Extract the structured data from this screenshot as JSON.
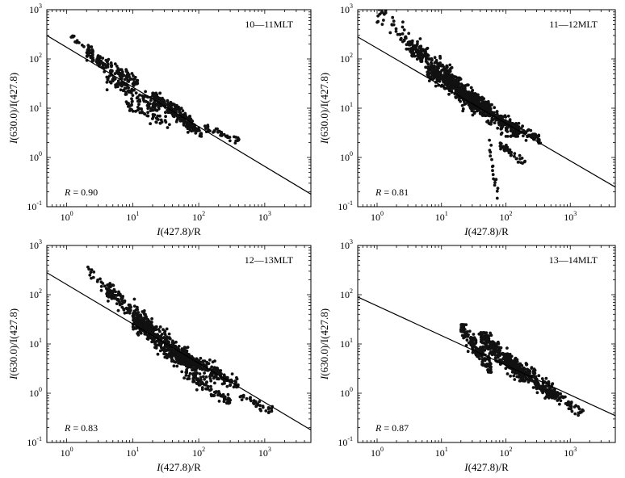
{
  "chart_data": [
    {
      "type": "scatter",
      "title": "10—11MLT",
      "xlabel_italic": "I",
      "xlabel_rest": "(427.8)/R",
      "ylabel_italic": "I",
      "ylabel_rest": "(630.0)/I(427.8)",
      "xscale": "log",
      "yscale": "log",
      "xlim": [
        0.5,
        5000
      ],
      "ylim": [
        0.1,
        1000
      ],
      "xticks": [
        1,
        10,
        100,
        1000
      ],
      "yticks": [
        0.1,
        1,
        10,
        100,
        1000
      ],
      "annotation": "R = 0.90",
      "fit_line": {
        "x": [
          0.5,
          5000
        ],
        "y": [
          300,
          0.18
        ]
      },
      "clusters": [
        {
          "x": [
            1.0,
            2.5
          ],
          "y": [
            150,
            320
          ],
          "n": 20
        },
        {
          "x": [
            2.0,
            12
          ],
          "y": [
            35,
            120
          ],
          "n": 120
        },
        {
          "x": [
            4,
            25
          ],
          "y": [
            10,
            45
          ],
          "n": 110
        },
        {
          "x": [
            8,
            40
          ],
          "y": [
            4,
            12
          ],
          "n": 50
        },
        {
          "x": [
            20,
            80
          ],
          "y": [
            5,
            18
          ],
          "n": 170
        },
        {
          "x": [
            35,
            110
          ],
          "y": [
            3,
            9
          ],
          "n": 80
        },
        {
          "x": [
            120,
            420
          ],
          "y": [
            2.2,
            4
          ],
          "n": 40
        }
      ]
    },
    {
      "type": "scatter",
      "title": "11—12MLT",
      "xlabel_italic": "I",
      "xlabel_rest": "(427.8)/R",
      "ylabel_italic": "I",
      "ylabel_rest": "(630.0)/I(427.8)",
      "xscale": "log",
      "yscale": "log",
      "xlim": [
        0.5,
        5000
      ],
      "ylim": [
        0.1,
        1000
      ],
      "xticks": [
        1,
        10,
        100,
        1000
      ],
      "yticks": [
        0.1,
        1,
        10,
        100,
        1000
      ],
      "annotation": "R = 0.81",
      "fit_line": {
        "x": [
          0.5,
          5000
        ],
        "y": [
          280,
          0.25
        ]
      },
      "clusters": [
        {
          "x": [
            1.0,
            6
          ],
          "y": [
            100,
            900
          ],
          "n": 70
        },
        {
          "x": [
            3,
            20
          ],
          "y": [
            30,
            200
          ],
          "n": 180
        },
        {
          "x": [
            6,
            60
          ],
          "y": [
            8,
            60
          ],
          "n": 380
        },
        {
          "x": [
            20,
            160
          ],
          "y": [
            3,
            20
          ],
          "n": 260
        },
        {
          "x": [
            80,
            350
          ],
          "y": [
            2.2,
            6
          ],
          "n": 80
        },
        {
          "x": [
            55,
            75
          ],
          "y": [
            0.12,
            2
          ],
          "n": 18
        },
        {
          "x": [
            80,
            200
          ],
          "y": [
            0.8,
            1.8
          ],
          "n": 40
        }
      ]
    },
    {
      "type": "scatter",
      "title": "12—13MLT",
      "xlabel_italic": "I",
      "xlabel_rest": "(427.8)/R",
      "ylabel_italic": "I",
      "ylabel_rest": "(630.0)/I(427.8)",
      "xscale": "log",
      "yscale": "log",
      "xlim": [
        0.5,
        5000
      ],
      "ylim": [
        0.1,
        1000
      ],
      "xticks": [
        1,
        10,
        100,
        1000
      ],
      "yticks": [
        0.1,
        1,
        10,
        100,
        1000
      ],
      "annotation": "R = 0.83",
      "fit_line": {
        "x": [
          0.5,
          5000
        ],
        "y": [
          280,
          0.18
        ]
      },
      "clusters": [
        {
          "x": [
            2,
            5
          ],
          "y": [
            100,
            350
          ],
          "n": 25
        },
        {
          "x": [
            4,
            20
          ],
          "y": [
            20,
            140
          ],
          "n": 170
        },
        {
          "x": [
            10,
            80
          ],
          "y": [
            4,
            30
          ],
          "n": 420
        },
        {
          "x": [
            30,
            400
          ],
          "y": [
            1.5,
            8
          ],
          "n": 300
        },
        {
          "x": [
            60,
            300
          ],
          "y": [
            0.7,
            2.5
          ],
          "n": 90
        },
        {
          "x": [
            400,
            1300
          ],
          "y": [
            0.45,
            0.9
          ],
          "n": 35
        }
      ]
    },
    {
      "type": "scatter",
      "title": "13—14MLT",
      "xlabel_italic": "I",
      "xlabel_rest": "(427.8)/R",
      "ylabel_italic": "I",
      "ylabel_rest": "(630.0)/I(427.8)",
      "xscale": "log",
      "yscale": "log",
      "xlim": [
        0.5,
        5000
      ],
      "ylim": [
        0.1,
        1000
      ],
      "xticks": [
        1,
        10,
        100,
        1000
      ],
      "yticks": [
        0.1,
        1,
        10,
        100,
        1000
      ],
      "annotation": "R = 0.87",
      "fit_line": {
        "x": [
          0.5,
          5000
        ],
        "y": [
          90,
          0.35
        ]
      },
      "clusters": [
        {
          "x": [
            20,
            60
          ],
          "y": [
            3,
            22
          ],
          "n": 160
        },
        {
          "x": [
            40,
            200
          ],
          "y": [
            2,
            15
          ],
          "n": 260
        },
        {
          "x": [
            100,
            600
          ],
          "y": [
            0.9,
            5
          ],
          "n": 200
        },
        {
          "x": [
            300,
            1600
          ],
          "y": [
            0.4,
            1.5
          ],
          "n": 80
        }
      ]
    }
  ]
}
